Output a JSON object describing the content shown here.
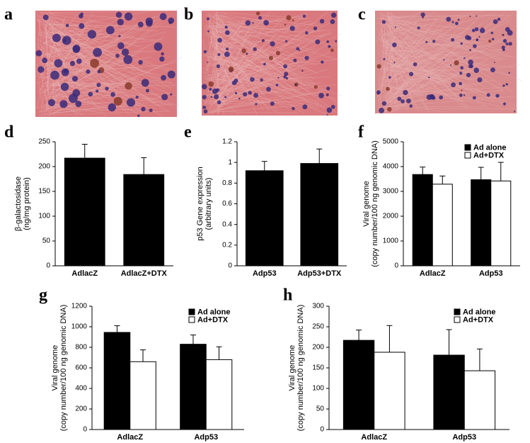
{
  "images": [
    {
      "label": "a"
    },
    {
      "label": "b"
    },
    {
      "label": "c"
    }
  ],
  "chart_data": [
    {
      "type": "bar",
      "panel_label": "d",
      "ylabel": [
        "β-galactosidase",
        "(ng/mg protein)"
      ],
      "categories": [
        "AdlacZ",
        "AdlacZ+DTX"
      ],
      "values": [
        217,
        184
      ],
      "errors": [
        28,
        34
      ],
      "color": "#000000",
      "ylim": [
        0,
        250
      ],
      "yticks": [
        0,
        50,
        100,
        150,
        200,
        250
      ]
    },
    {
      "type": "bar",
      "panel_label": "e",
      "ylabel": [
        "p53 Gene expression",
        "(arbitrary units)"
      ],
      "categories": [
        "Adp53",
        "Adp53+DTX"
      ],
      "values": [
        0.92,
        0.99
      ],
      "errors": [
        0.09,
        0.14
      ],
      "color": "#000000",
      "ylim": [
        0,
        1.2
      ],
      "yticks": [
        0,
        0.2,
        0.4,
        0.6,
        0.8,
        1,
        1.2
      ]
    },
    {
      "type": "bar",
      "panel_label": "f",
      "ylabel": [
        "Viral genome",
        "(copy number/100 ng genomic DNA)"
      ],
      "categories": [
        "AdlacZ",
        "Adp53"
      ],
      "series": [
        {
          "name": "Ad alone",
          "color": "#000000",
          "values": [
            3680,
            3470
          ],
          "errors": [
            300,
            500
          ]
        },
        {
          "name": "Ad+DTX",
          "color": "#ffffff",
          "values": [
            3290,
            3420
          ],
          "errors": [
            330,
            750
          ]
        }
      ],
      "ylim": [
        0,
        5000
      ],
      "yticks": [
        0,
        1000,
        2000,
        3000,
        4000,
        5000
      ],
      "legend": "top-right"
    },
    {
      "type": "bar",
      "panel_label": "g",
      "ylabel": [
        "Viral genome",
        "(copy number/100 ng genomic DNA)"
      ],
      "categories": [
        "AdlacZ",
        "Adp53"
      ],
      "series": [
        {
          "name": "Ad alone",
          "color": "#000000",
          "values": [
            945,
            830
          ],
          "errors": [
            65,
            90
          ]
        },
        {
          "name": "Ad+DTX",
          "color": "#ffffff",
          "values": [
            660,
            680
          ],
          "errors": [
            115,
            125
          ]
        }
      ],
      "ylim": [
        0,
        1200
      ],
      "yticks": [
        0,
        200,
        400,
        600,
        800,
        1000,
        1200
      ],
      "legend": "top-right"
    },
    {
      "type": "bar",
      "panel_label": "h",
      "ylabel": [
        "Viral genome",
        "(copy number/100 ng genomic DNA)"
      ],
      "categories": [
        "AdlacZ",
        "Adp53"
      ],
      "series": [
        {
          "name": "Ad alone",
          "color": "#000000",
          "values": [
            217,
            181
          ],
          "errors": [
            25,
            62
          ]
        },
        {
          "name": "Ad+DTX",
          "color": "#ffffff",
          "values": [
            188,
            143
          ],
          "errors": [
            65,
            53
          ]
        }
      ],
      "ylim": [
        0,
        300
      ],
      "yticks": [
        0,
        50,
        100,
        150,
        200,
        250,
        300
      ],
      "legend": "top-right"
    }
  ]
}
